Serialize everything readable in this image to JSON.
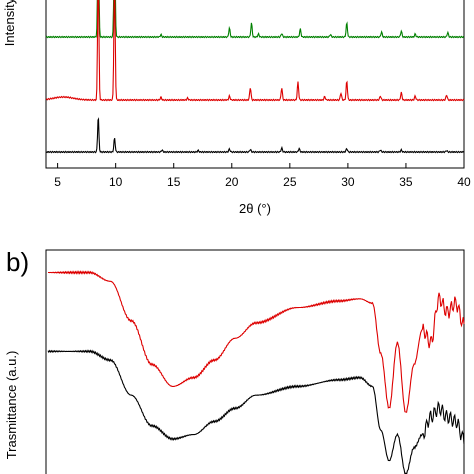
{
  "chart_data": [
    {
      "type": "line",
      "xlabel": "2θ (°)",
      "ylabel": "Intensity",
      "xlim": [
        4,
        40
      ],
      "xticks": [
        5,
        10,
        15,
        20,
        25,
        30,
        35,
        40
      ],
      "tick_labels": [
        "5",
        "10",
        "15",
        "20",
        "25",
        "30",
        "35",
        "40"
      ],
      "grid": false,
      "legend": "none",
      "series": [
        {
          "color": "#008000",
          "baseline": 0.8,
          "peaks": [
            [
              8.5,
              2.2
            ],
            [
              9.9,
              2.0
            ],
            [
              13.9,
              0.05
            ],
            [
              19.8,
              0.18
            ],
            [
              21.7,
              0.28
            ],
            [
              22.3,
              0.06
            ],
            [
              24.3,
              0.07
            ],
            [
              25.9,
              0.16
            ],
            [
              28.5,
              0.05
            ],
            [
              29.9,
              0.28
            ],
            [
              32.9,
              0.1
            ],
            [
              34.6,
              0.12
            ],
            [
              35.8,
              0.06
            ],
            [
              38.6,
              0.09
            ]
          ]
        },
        {
          "color": "#dd0000",
          "baseline": 0.4,
          "hump": [
            5.5,
            0.06
          ],
          "peaks": [
            [
              8.5,
              2.8
            ],
            [
              9.9,
              2.4
            ],
            [
              13.9,
              0.06
            ],
            [
              16.2,
              0.04
            ],
            [
              19.8,
              0.08
            ],
            [
              21.6,
              0.25
            ],
            [
              24.3,
              0.24
            ],
            [
              25.7,
              0.36
            ],
            [
              28.0,
              0.07
            ],
            [
              29.4,
              0.14
            ],
            [
              29.9,
              0.38
            ],
            [
              32.8,
              0.08
            ],
            [
              34.6,
              0.15
            ],
            [
              35.8,
              0.08
            ],
            [
              38.5,
              0.1
            ]
          ]
        },
        {
          "color": "#000000",
          "baseline": 0.0,
          "peaks": [
            [
              8.5,
              0.72
            ],
            [
              9.9,
              0.28
            ],
            [
              14.0,
              0.04
            ],
            [
              17.1,
              0.03
            ],
            [
              19.8,
              0.06
            ],
            [
              21.6,
              0.05
            ],
            [
              24.3,
              0.08
            ],
            [
              25.8,
              0.07
            ],
            [
              29.9,
              0.07
            ],
            [
              32.8,
              0.04
            ],
            [
              34.6,
              0.04
            ],
            [
              38.5,
              0.03
            ]
          ]
        }
      ]
    },
    {
      "panel_label": "b)",
      "type": "line",
      "xlabel": "",
      "ylabel": "Trasmittance (a.u.)",
      "grid": false,
      "legend": "none",
      "series": [
        {
          "color": "#dd0000",
          "profile": [
            [
              0.0,
              0.92
            ],
            [
              0.1,
              0.92
            ],
            [
              0.15,
              0.88
            ],
            [
              0.2,
              0.7
            ],
            [
              0.25,
              0.5
            ],
            [
              0.3,
              0.4
            ],
            [
              0.35,
              0.44
            ],
            [
              0.4,
              0.52
            ],
            [
              0.45,
              0.62
            ],
            [
              0.5,
              0.69
            ],
            [
              0.6,
              0.76
            ],
            [
              0.7,
              0.79
            ],
            [
              0.75,
              0.8
            ],
            [
              0.78,
              0.78
            ],
            [
              0.8,
              0.55
            ],
            [
              0.82,
              0.3
            ],
            [
              0.84,
              0.6
            ],
            [
              0.86,
              0.28
            ],
            [
              0.88,
              0.5
            ],
            [
              0.9,
              0.66
            ],
            [
              0.92,
              0.6
            ],
            [
              0.94,
              0.8
            ],
            [
              0.96,
              0.74
            ],
            [
              0.98,
              0.78
            ],
            [
              1.0,
              0.68
            ]
          ]
        },
        {
          "color": "#000000",
          "profile": [
            [
              0.0,
              0.56
            ],
            [
              0.1,
              0.56
            ],
            [
              0.15,
              0.52
            ],
            [
              0.2,
              0.36
            ],
            [
              0.25,
              0.22
            ],
            [
              0.3,
              0.16
            ],
            [
              0.35,
              0.18
            ],
            [
              0.4,
              0.24
            ],
            [
              0.45,
              0.3
            ],
            [
              0.5,
              0.36
            ],
            [
              0.6,
              0.4
            ],
            [
              0.7,
              0.43
            ],
            [
              0.75,
              0.44
            ],
            [
              0.78,
              0.4
            ],
            [
              0.8,
              0.2
            ],
            [
              0.82,
              0.06
            ],
            [
              0.84,
              0.18
            ],
            [
              0.86,
              0.0
            ],
            [
              0.88,
              0.12
            ],
            [
              0.9,
              0.18
            ],
            [
              0.92,
              0.26
            ],
            [
              0.94,
              0.3
            ],
            [
              0.96,
              0.26
            ],
            [
              0.98,
              0.24
            ],
            [
              1.0,
              0.16
            ]
          ]
        }
      ]
    }
  ]
}
